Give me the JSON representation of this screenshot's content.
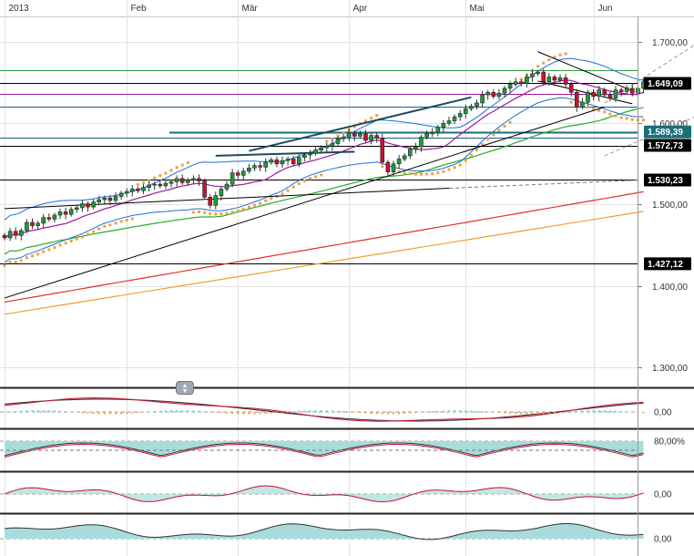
{
  "chart_data": {
    "type": "candlestick",
    "months": [
      {
        "label": "2013",
        "index": 0
      },
      {
        "label": "Feb",
        "index": 22
      },
      {
        "label": "Mär",
        "index": 42
      },
      {
        "label": "Apr",
        "index": 62
      },
      {
        "label": "Mai",
        "index": 83
      },
      {
        "label": "Jun",
        "index": 106
      }
    ],
    "y_ticks": [
      "1.700,00",
      "1.600,00",
      "1.500,00",
      "1.400,00",
      "1.300,00"
    ],
    "y_tick_values": [
      1700,
      1600,
      1500,
      1400,
      1300
    ],
    "ylim": [
      1275,
      1727
    ],
    "start_close": 1462,
    "daily_changes": [
      -3,
      8,
      -5,
      6,
      10,
      -4,
      3,
      7,
      -2,
      5,
      4,
      -3,
      6,
      2,
      5,
      -4,
      6,
      3,
      2,
      -3,
      5,
      4,
      2,
      3,
      -2,
      4,
      3,
      1,
      -2,
      3,
      2,
      4,
      -5,
      3,
      2,
      -3,
      -20,
      -10,
      12,
      8,
      6,
      14,
      -3,
      5,
      4,
      3,
      -2,
      6,
      3,
      -5,
      4,
      2,
      -6,
      8,
      3,
      2,
      4,
      3,
      2,
      3,
      6,
      2,
      5,
      -4,
      3,
      -8,
      6,
      -3,
      -30,
      -12,
      10,
      6,
      4,
      8,
      3,
      12,
      4,
      2,
      6,
      5,
      3,
      5,
      4,
      6,
      3,
      4,
      10,
      3,
      -5,
      4,
      6,
      5,
      3,
      -2,
      8,
      4,
      2,
      -12,
      6,
      -4,
      3,
      -8,
      -10,
      -18,
      6,
      12,
      -5,
      8,
      -6,
      -4,
      10,
      -2,
      4,
      -6,
      6,
      8
    ],
    "price_levels": [
      {
        "value": 1649.09,
        "label": "1.649,09",
        "color": "#000000",
        "boxed": true
      },
      {
        "value": 1589.39,
        "label": "1.589,39",
        "color": "#1a6f7a",
        "boxed": true
      },
      {
        "value": 1572.73,
        "label": "1.572,73",
        "color": "#000000",
        "boxed": true
      },
      {
        "value": 1530.23,
        "label": "1.530,23",
        "color": "#000000",
        "boxed": true
      },
      {
        "value": 1427.12,
        "label": "1.427,12",
        "color": "#000000",
        "boxed": true
      },
      {
        "value": 1665,
        "color": "#2e9e3a",
        "boxed": false
      },
      {
        "value": 1636,
        "color": "#9a1a9a",
        "boxed": false
      },
      {
        "value": 1620,
        "color": "#1f5c8a",
        "boxed": false
      },
      {
        "value": 1582,
        "color": "#1f5c8a",
        "boxed": false
      }
    ],
    "panels": [
      {
        "name": "macd",
        "label": "0,00"
      },
      {
        "name": "stochastic",
        "label": "80,00%"
      },
      {
        "name": "momentum",
        "label": "0,00"
      },
      {
        "name": "volume-oscillator",
        "label": "0,00"
      }
    ],
    "colors": {
      "up": "#1e9a3c",
      "down": "#c8102e",
      "bollinger": "#1a6fd6",
      "sma20": "#9a1a9a",
      "sma50": "#2aaa2a",
      "sma200": "#e03030",
      "sma250": "#f0a030",
      "psar": "#f0a040",
      "trend": "#1a4a5a",
      "fill_teal": "#a8dcdc",
      "fill_red": "#f0a8a8"
    },
    "grid": true
  }
}
